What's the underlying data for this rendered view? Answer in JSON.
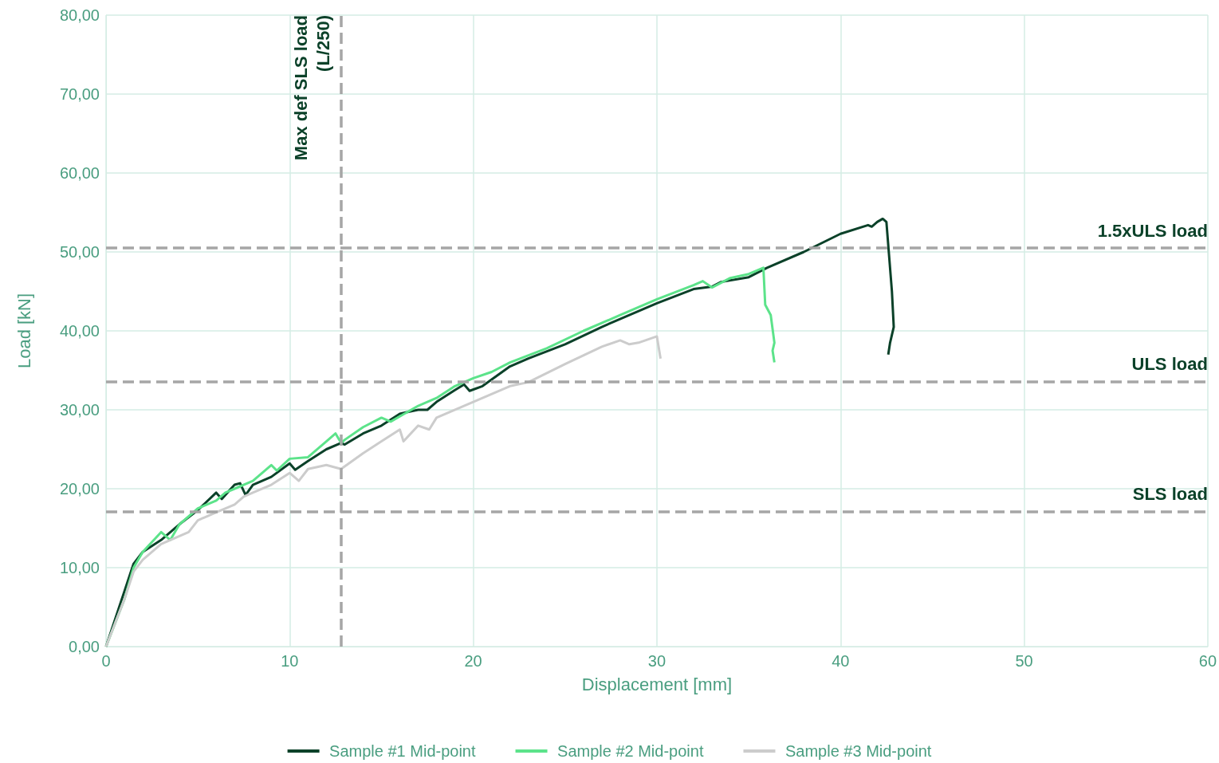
{
  "chart_data": {
    "type": "line",
    "xlabel": "Displacement [mm]",
    "ylabel": "Load [kN]",
    "xlim": [
      0,
      60
    ],
    "xticks": [
      0,
      10,
      20,
      30,
      40,
      50,
      60
    ],
    "ylim": [
      0,
      80
    ],
    "yticks": [
      {
        "value": 0,
        "label": "0,00"
      },
      {
        "value": 10,
        "label": "10,00"
      },
      {
        "value": 20,
        "label": "20,00"
      },
      {
        "value": 30,
        "label": "30,00"
      },
      {
        "value": 40,
        "label": "40,00"
      },
      {
        "value": 50,
        "label": "50,00"
      },
      {
        "value": 60,
        "label": "60,00"
      },
      {
        "value": 70,
        "label": "70,00"
      },
      {
        "value": 80,
        "label": "80,00"
      }
    ],
    "grid": true,
    "legend": "bottom",
    "marker": "none",
    "line_style": "solid",
    "series": [
      {
        "name": "Sample #1 Mid-point",
        "color": "#0b4129",
        "x": [
          0,
          1,
          1.5,
          2,
          3,
          4,
          5,
          6,
          6.3,
          7,
          7.3,
          7.6,
          8,
          9,
          10,
          10.3,
          11,
          12,
          12.8,
          13,
          14,
          15,
          16,
          17,
          17.5,
          18,
          19,
          19.5,
          19.8,
          20.5,
          22,
          23,
          25,
          27,
          30,
          32,
          33,
          33.5,
          35,
          36,
          38,
          40,
          41.5,
          41.7,
          42,
          42.3,
          42.5,
          42.8,
          42.9,
          42.7,
          42.6
        ],
        "values": [
          0,
          7,
          10.5,
          12,
          13.5,
          15.5,
          17.3,
          19.5,
          18.7,
          20.5,
          20.7,
          19.2,
          20.5,
          21.5,
          23.2,
          22.4,
          23.5,
          25,
          25.8,
          25.6,
          27,
          28,
          29.5,
          30,
          30,
          31,
          32.5,
          33.2,
          32.4,
          33,
          35.5,
          36.5,
          38.3,
          40.5,
          43.5,
          45.3,
          45.6,
          46.2,
          46.8,
          48,
          50,
          52.3,
          53.4,
          53.2,
          53.8,
          54.2,
          53.8,
          45,
          40.5,
          38.5,
          37
        ]
      },
      {
        "name": "Sample #2 Mid-point",
        "color": "#5ce38a",
        "x": [
          0,
          1,
          1.5,
          2,
          3,
          3.5,
          4,
          5,
          6,
          6.5,
          7,
          8,
          9,
          9.3,
          10,
          11,
          12,
          12.5,
          12.8,
          13,
          14,
          15,
          15.5,
          17,
          18,
          19,
          20,
          21,
          22,
          24,
          26,
          28,
          30,
          32,
          32.5,
          33,
          34,
          35,
          35.8,
          35.9,
          36.2,
          36.4,
          36.3,
          36.4
        ],
        "values": [
          0,
          6,
          10,
          12,
          14.5,
          13.5,
          15.5,
          17.5,
          18.5,
          19.5,
          20,
          21,
          23,
          22.3,
          23.8,
          24,
          26,
          27,
          25.8,
          26.2,
          27.8,
          29,
          28.5,
          30.5,
          31.5,
          33,
          34,
          34.8,
          36,
          37.8,
          40,
          42,
          44,
          45.8,
          46.3,
          45.5,
          46.7,
          47.2,
          48,
          43.3,
          42,
          38.5,
          37.5,
          36
        ]
      },
      {
        "name": "Sample #3 Mid-point",
        "color": "#cccccc",
        "x": [
          0,
          1,
          1.5,
          2,
          3,
          4,
          4.5,
          5,
          6,
          7,
          7.5,
          8,
          9,
          10,
          10.5,
          11,
          12,
          12.8,
          14,
          15,
          16,
          16.2,
          17,
          17.6,
          18,
          20,
          22,
          23,
          25,
          27,
          28,
          28.5,
          29,
          30,
          30.2
        ],
        "values": [
          0,
          6,
          9.5,
          11,
          13,
          14,
          14.5,
          16,
          17,
          18,
          19,
          19.5,
          20.5,
          22,
          21,
          22.5,
          23,
          22.5,
          24.5,
          26,
          27.5,
          26,
          28,
          27.5,
          29,
          31,
          33,
          33.5,
          35.8,
          38,
          38.8,
          38.3,
          38.5,
          39.3,
          36.5
        ]
      }
    ],
    "ref_lines": [
      {
        "axis": "x",
        "value": 12.8,
        "label": "Max def SLS load\n(L/250)",
        "color": "#a6a6a6",
        "line_style": "dashed"
      },
      {
        "axis": "y",
        "value": 50.5,
        "label": "1.5xULS load",
        "color": "#a6a6a6",
        "line_style": "dashed"
      },
      {
        "axis": "y",
        "value": 33.6,
        "label": "ULS load",
        "color": "#a6a6a6",
        "line_style": "dashed"
      },
      {
        "axis": "y",
        "value": 17.1,
        "label": "SLS load",
        "color": "#a6a6a6",
        "line_style": "dashed"
      }
    ]
  }
}
